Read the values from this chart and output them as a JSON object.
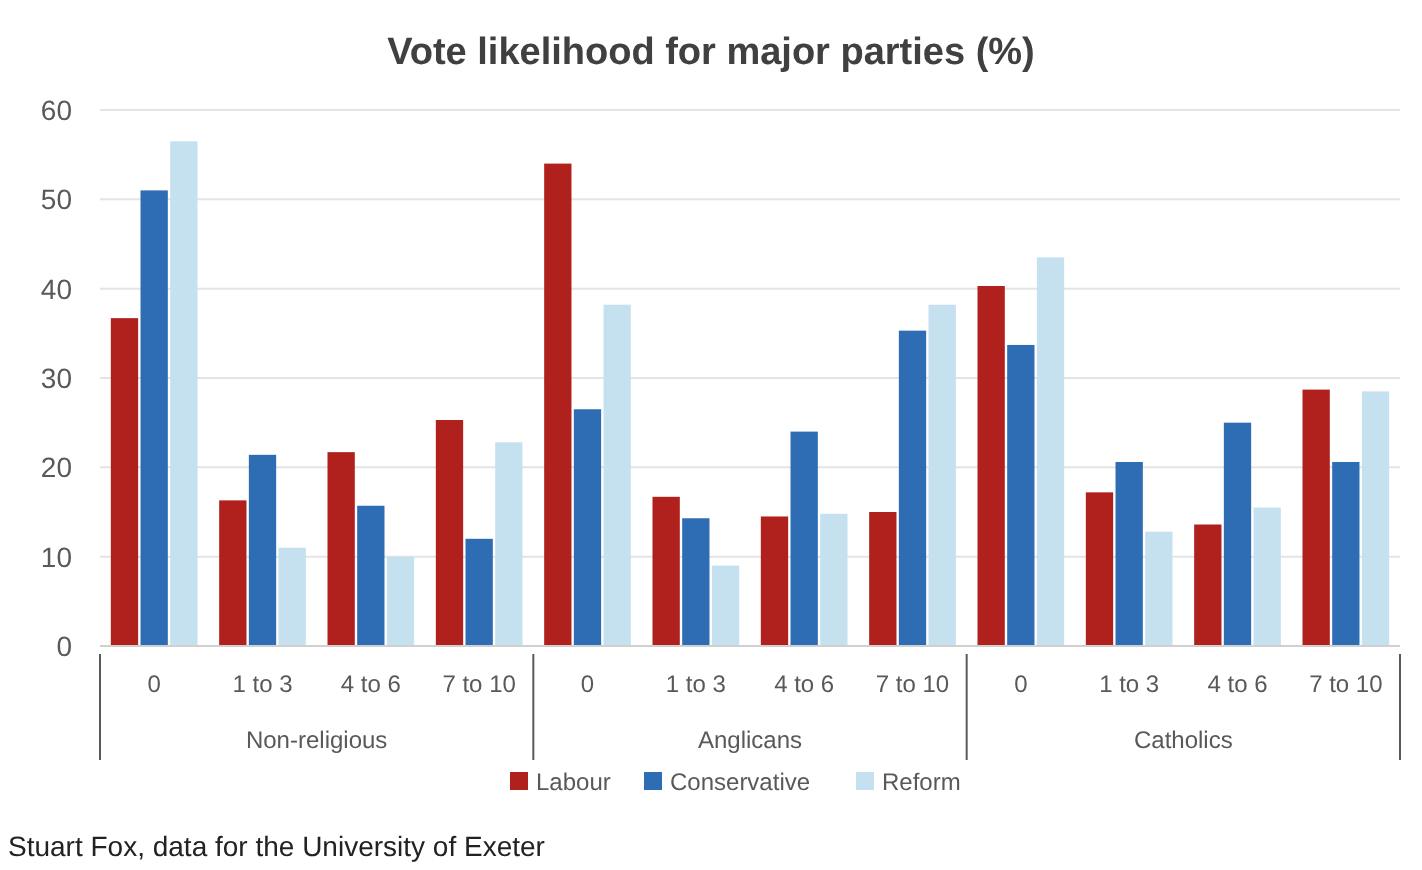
{
  "chart_data": {
    "type": "bar",
    "title": "Vote likelihood for major parties (%)",
    "categories": [
      "0",
      "1 to 3",
      "4 to 6",
      "7 to 10",
      "0",
      "1 to 3",
      "4 to 6",
      "7 to 10",
      "0",
      "1 to 3",
      "4 to 6",
      "7 to 10"
    ],
    "series": [
      {
        "name": "Labour",
        "color": "#b0201c",
        "values": [
          36.7,
          16.3,
          21.7,
          25.3,
          54,
          16.7,
          14.5,
          15,
          40.3,
          17.2,
          13.6,
          28.7
        ]
      },
      {
        "name": "Conservative",
        "color": "#2e6db4",
        "values": [
          51,
          21.4,
          15.7,
          12,
          26.5,
          14.3,
          24,
          35.3,
          33.7,
          20.6,
          25,
          20.6
        ]
      },
      {
        "name": "Reform",
        "color": "#c5e0ef",
        "values": [
          56.5,
          11,
          10,
          22.8,
          38.2,
          9,
          14.8,
          38.2,
          43.5,
          12.8,
          15.5,
          28.5
        ]
      }
    ],
    "ylim": [
      0,
      60
    ],
    "yticks": [
      0,
      10,
      20,
      30,
      40,
      50,
      60
    ],
    "grid": "y",
    "legend": "bottom",
    "annotations": [
      "Non-religious",
      "Anglicans",
      "Catholics",
      "Stuart Fox, data for the University of Exeter"
    ]
  }
}
